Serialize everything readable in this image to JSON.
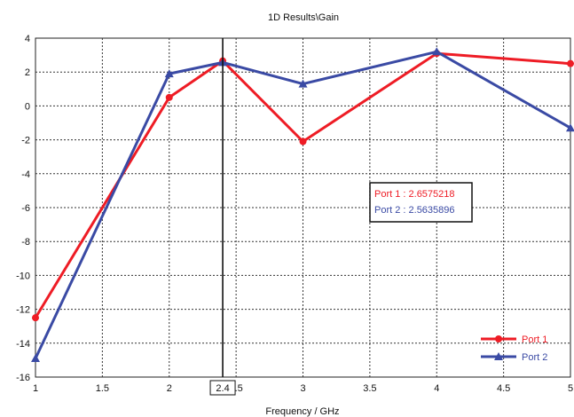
{
  "chart_data": {
    "type": "line",
    "title": "1D Results\\Gain",
    "xlabel": "Frequency / GHz",
    "ylabel": "",
    "xlim": [
      1,
      5
    ],
    "ylim": [
      -16,
      4
    ],
    "x_ticks": [
      "1",
      "1.5",
      "2",
      "2.5",
      "3",
      "3.5",
      "4",
      "4.5",
      "5"
    ],
    "y_ticks": [
      "4",
      "2",
      "0",
      "-2",
      "-4",
      "-6",
      "-8",
      "-10",
      "-12",
      "-14",
      "-16"
    ],
    "grid": true,
    "legend_position": "bottom-right",
    "series": [
      {
        "name": "Port 1",
        "color": "#ee1c25",
        "marker": "circle",
        "x": [
          1,
          2,
          2.4,
          3,
          4,
          5
        ],
        "values": [
          -12.5,
          0.5,
          2.6575218,
          -2.1,
          3.1,
          2.5
        ]
      },
      {
        "name": "Port 2",
        "color": "#3a4aa4",
        "marker": "triangle",
        "x": [
          1,
          2,
          2.4,
          3,
          4,
          5
        ],
        "values": [
          -14.9,
          1.9,
          2.5635896,
          1.3,
          3.2,
          -1.3
        ]
      }
    ],
    "cursor": {
      "x": 2.4,
      "label": "2.4",
      "readouts": [
        {
          "text": "Port 1 : 2.6575218",
          "color": "#ee1c25"
        },
        {
          "text": "Port 2 : 2.5635896",
          "color": "#3a4aa4"
        }
      ]
    }
  }
}
